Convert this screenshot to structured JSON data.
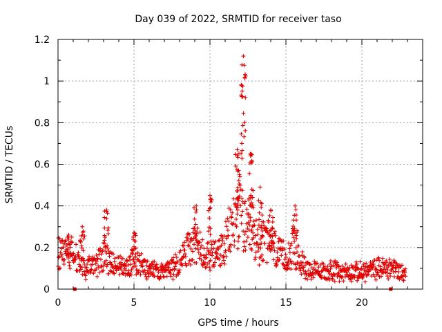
{
  "chart_data": {
    "type": "scatter",
    "title": "Day 039 of 2022, SRMTID for receiver taso",
    "xlabel": "GPS time / hours",
    "ylabel": "SRMTID / TECUs",
    "xlim": [
      0,
      24
    ],
    "ylim": [
      0,
      1.2
    ],
    "xticks": [
      0,
      5,
      10,
      15,
      20
    ],
    "yticks": [
      0,
      0.2,
      0.4,
      0.6,
      0.8,
      1,
      1.2
    ],
    "xtick_labels": [
      "0",
      "5",
      "10",
      "15",
      "20"
    ],
    "ytick_labels": [
      "0",
      "0.2",
      "0.4",
      "0.6",
      "0.8",
      "1",
      "1.2"
    ],
    "grid": true,
    "marker": "+",
    "color": "#e00000",
    "time_range_hours": [
      0,
      22.9
    ],
    "data_gap_markers_x": [
      1.1,
      21.9
    ],
    "series": [
      {
        "name": "SRMTID",
        "envelope_x": [
          0,
          0.5,
          1,
          1.5,
          2,
          2.5,
          3,
          3.5,
          4,
          4.5,
          5,
          5.5,
          6,
          6.5,
          7,
          7.5,
          8,
          8.5,
          9,
          9.5,
          10,
          10.5,
          11,
          11.5,
          12,
          12.5,
          13,
          13.5,
          14,
          14.5,
          15,
          15.5,
          16,
          16.5,
          17,
          17.5,
          18,
          18.5,
          19,
          19.5,
          20,
          20.5,
          21,
          21.5,
          22,
          22.5,
          22.9
        ],
        "envelope_y": [
          0.2,
          0.22,
          0.2,
          0.14,
          0.12,
          0.14,
          0.2,
          0.16,
          0.13,
          0.13,
          0.16,
          0.13,
          0.11,
          0.11,
          0.11,
          0.12,
          0.16,
          0.22,
          0.25,
          0.23,
          0.2,
          0.2,
          0.25,
          0.38,
          0.45,
          0.3,
          0.28,
          0.27,
          0.28,
          0.2,
          0.18,
          0.24,
          0.15,
          0.12,
          0.1,
          0.1,
          0.11,
          0.1,
          0.1,
          0.1,
          0.1,
          0.11,
          0.12,
          0.12,
          0.13,
          0.1,
          0.09
        ],
        "peaks": [
          {
            "x": 0.7,
            "y": 0.26
          },
          {
            "x": 1.6,
            "y": 0.3
          },
          {
            "x": 3.2,
            "y": 0.38
          },
          {
            "x": 5.0,
            "y": 0.27
          },
          {
            "x": 9.1,
            "y": 0.4
          },
          {
            "x": 10.0,
            "y": 0.45
          },
          {
            "x": 11.8,
            "y": 0.67
          },
          {
            "x": 12.2,
            "y": 1.12
          },
          {
            "x": 12.7,
            "y": 0.65
          },
          {
            "x": 13.3,
            "y": 0.49
          },
          {
            "x": 14.0,
            "y": 0.38
          },
          {
            "x": 15.6,
            "y": 0.4
          }
        ]
      }
    ]
  }
}
